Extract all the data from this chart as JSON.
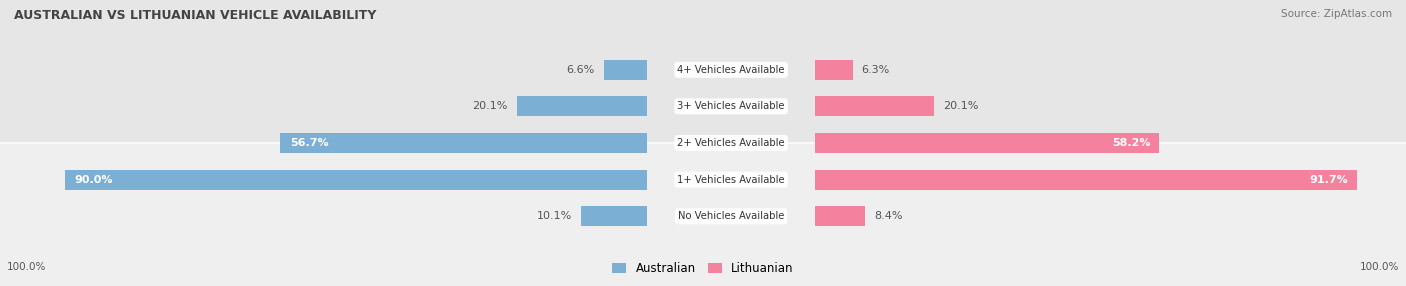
{
  "title": "AUSTRALIAN VS LITHUANIAN VEHICLE AVAILABILITY",
  "source": "Source: ZipAtlas.com",
  "categories": [
    "No Vehicles Available",
    "1+ Vehicles Available",
    "2+ Vehicles Available",
    "3+ Vehicles Available",
    "4+ Vehicles Available"
  ],
  "australian_values": [
    10.1,
    90.0,
    56.7,
    20.1,
    6.6
  ],
  "lithuanian_values": [
    8.4,
    91.7,
    58.2,
    20.1,
    6.3
  ],
  "australian_color": "#7bafd4",
  "australian_color_dark": "#5b9dc8",
  "lithuanian_color": "#f4829e",
  "lithuanian_color_dark": "#e8326e",
  "row_bg_even": "#efefef",
  "row_bg_odd": "#e6e6e6",
  "fig_bg": "#f9f9f9",
  "max_value": 100.0,
  "figsize": [
    14.06,
    2.86
  ],
  "dpi": 100
}
